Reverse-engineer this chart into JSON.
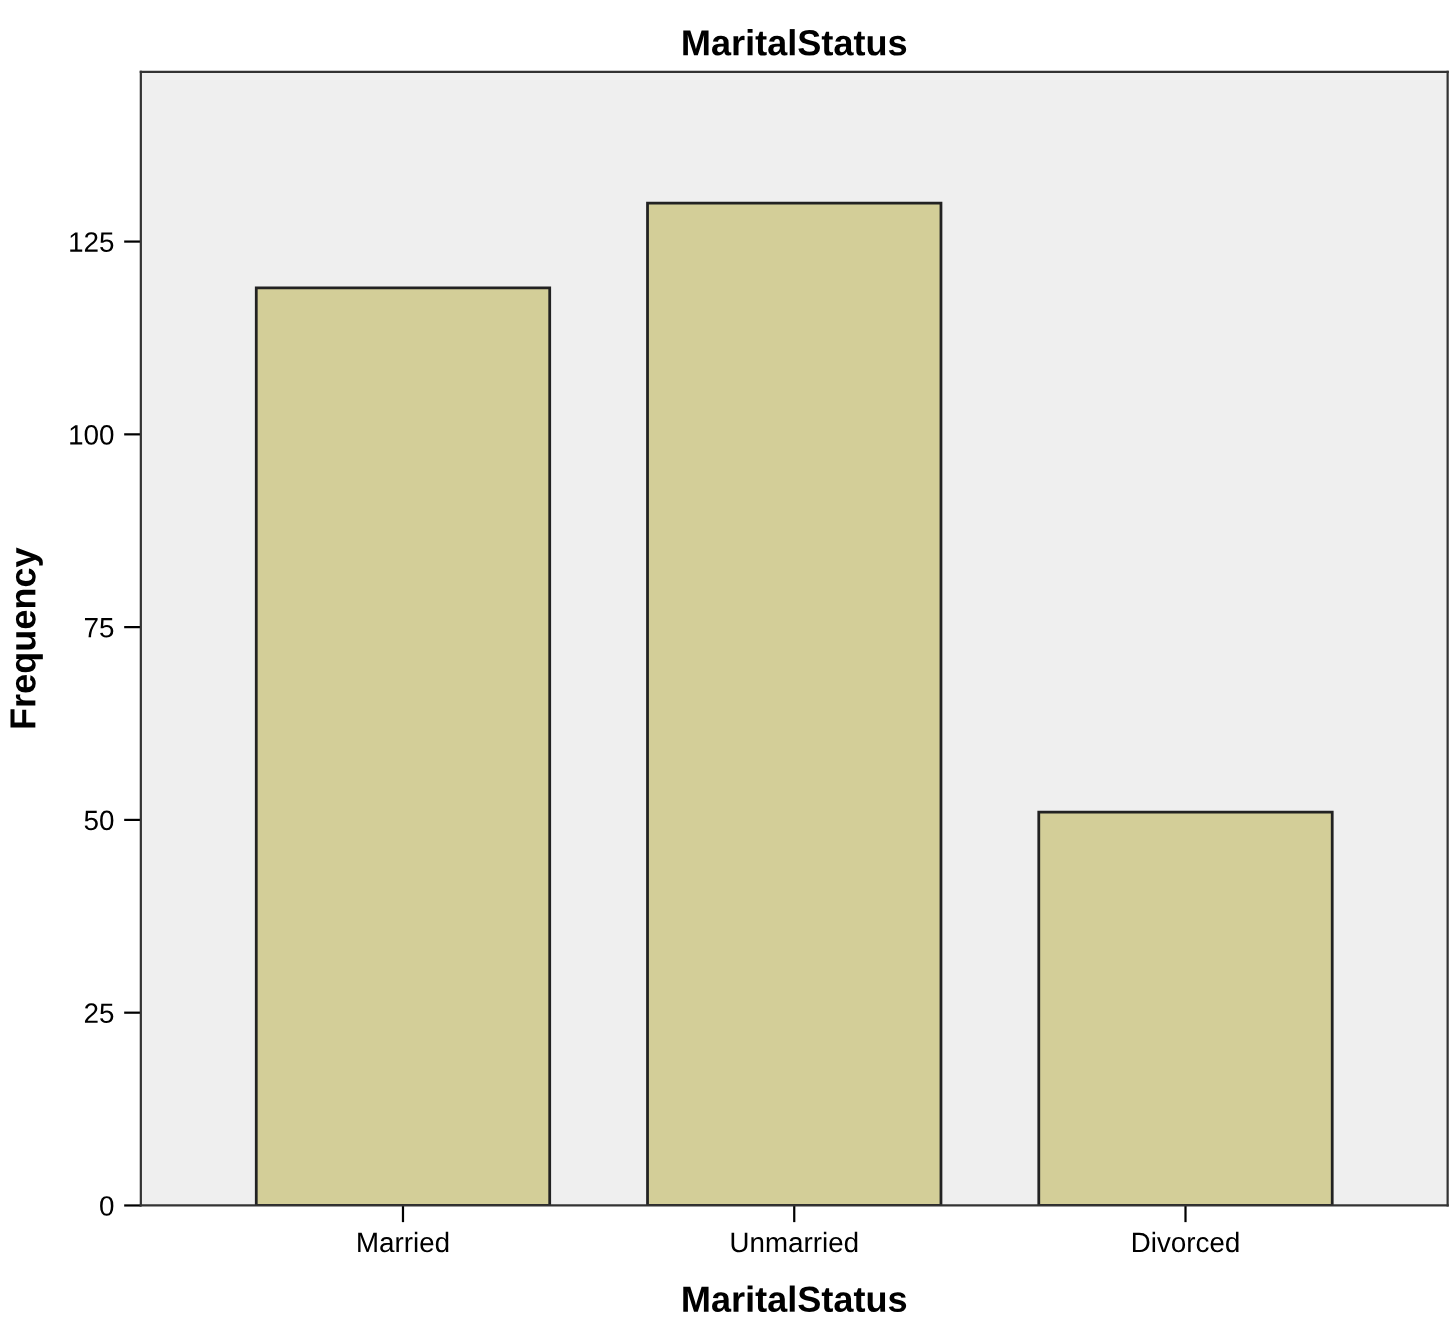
{
  "chart_data": {
    "type": "bar",
    "title": "MaritalStatus",
    "xlabel": "MaritalStatus",
    "ylabel": "Frequency",
    "categories": [
      "Married",
      "Unmarried",
      "Divorced"
    ],
    "values": [
      119,
      130,
      51
    ],
    "color": "#d3ce98",
    "ylim": [
      0,
      147
    ],
    "yticks": [
      0,
      25,
      50,
      75,
      100,
      125
    ],
    "grid": false,
    "legend": false
  }
}
